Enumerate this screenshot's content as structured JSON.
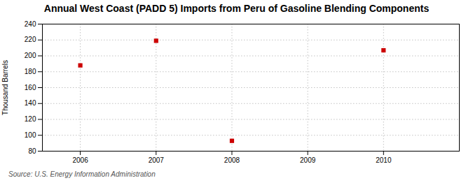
{
  "chart_data": {
    "type": "scatter",
    "title": "Annual West Coast (PADD 5) Imports from Peru of Gasoline Blending Components",
    "ylabel": "Thousand Barrels",
    "source": "Source: U.S. Energy Information Administration",
    "x": [
      2006,
      2007,
      2008,
      2010
    ],
    "values": [
      188,
      219,
      93,
      207
    ],
    "color": "#cc0000",
    "marker": "square",
    "xlim": [
      2005.5,
      2011.0
    ],
    "ylim": [
      80,
      240
    ],
    "xticks": [
      2006,
      2007,
      2008,
      2009,
      2010
    ],
    "yticks": [
      80,
      100,
      120,
      140,
      160,
      180,
      200,
      220,
      240
    ],
    "grid": true
  }
}
